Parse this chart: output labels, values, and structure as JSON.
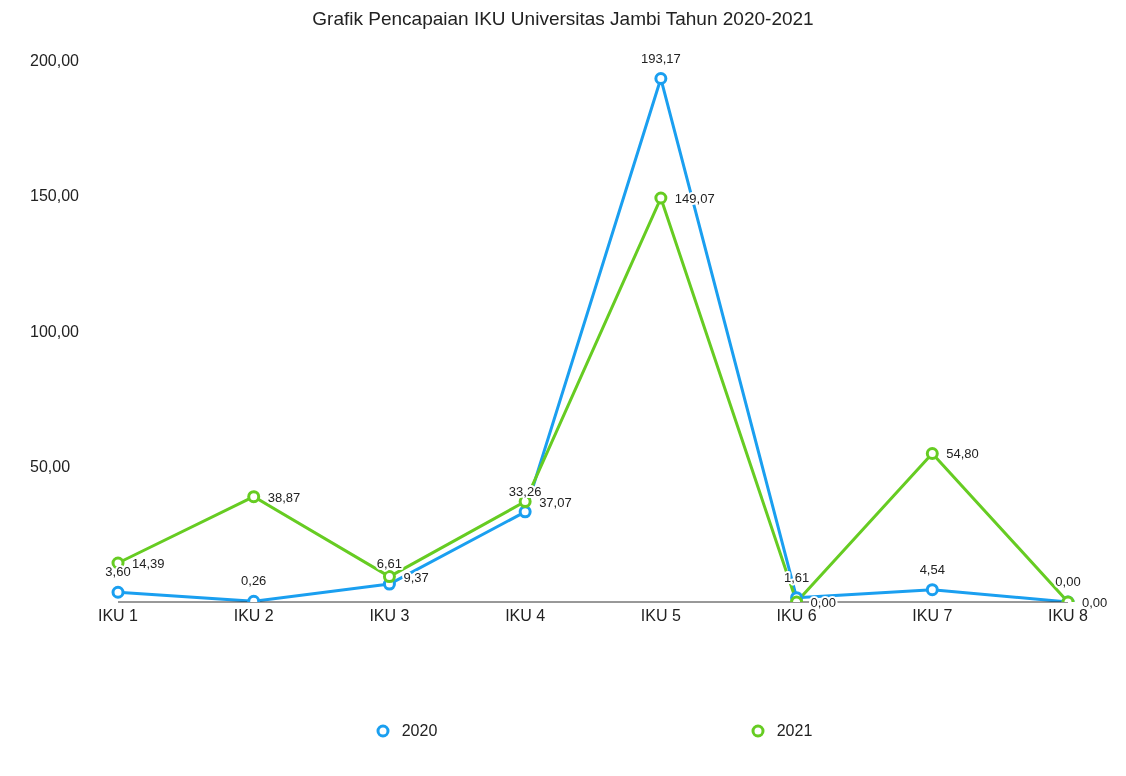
{
  "chart_data": {
    "type": "line",
    "title": "Grafik Pencapaian IKU Universitas Jambi Tahun 2020-2021",
    "categories": [
      "IKU 1",
      "IKU 2",
      "IKU 3",
      "IKU 4",
      "IKU 5",
      "IKU 6",
      "IKU 7",
      "IKU 8"
    ],
    "series": [
      {
        "name": "2020",
        "color": "#1a9ff0",
        "values": [
          3.6,
          0.26,
          6.61,
          33.26,
          193.17,
          1.61,
          4.54,
          0.0
        ],
        "value_labels": [
          "3,60",
          "0,26",
          "6,61",
          "33,26",
          "193,17",
          "1,61",
          "4,54",
          "0,00"
        ]
      },
      {
        "name": "2021",
        "color": "#66cc22",
        "values": [
          14.39,
          38.87,
          9.37,
          37.07,
          149.07,
          0.0,
          54.8,
          0.0
        ],
        "value_labels": [
          "14,39",
          "38,87",
          "9,37",
          "37,07",
          "149,07",
          "0,00",
          "54,80",
          "0,00"
        ]
      }
    ],
    "ylim": [
      0,
      200
    ],
    "yticks": [
      {
        "value": 50,
        "label": "50,00"
      },
      {
        "value": 100,
        "label": "100,00"
      },
      {
        "value": 150,
        "label": "150,00"
      },
      {
        "value": 200,
        "label": "200,00"
      }
    ],
    "grid": false,
    "legend": "bottom",
    "marker": "circle",
    "line_style": "solid"
  }
}
